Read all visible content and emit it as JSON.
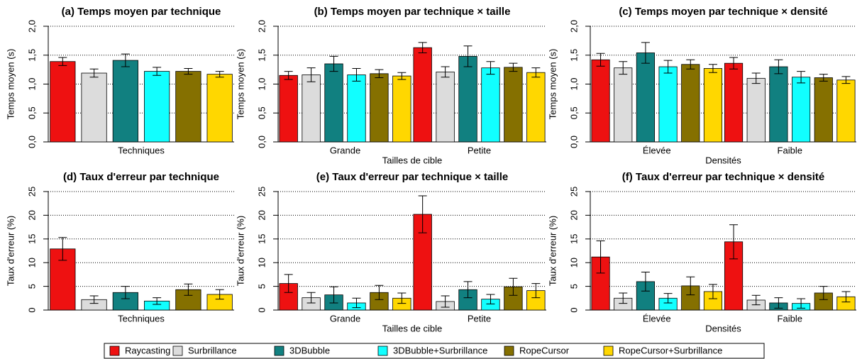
{
  "legend": [
    {
      "name": "Raycasting",
      "color": "#ee1111"
    },
    {
      "name": "Surbrillance",
      "color": "#dcdcdc"
    },
    {
      "name": "3DBubble",
      "color": "#118080"
    },
    {
      "name": "3DBubble+Surbrillance",
      "color": "#11ffff"
    },
    {
      "name": "RopeCursor",
      "color": "#857000"
    },
    {
      "name": "RopeCursor+Surbrillance",
      "color": "#ffd700"
    }
  ],
  "chart_data": [
    {
      "type": "bar",
      "title": "(a) Temps moyen par technique",
      "ylabel": "Temps moyen (s)",
      "xlabel": "Techniques",
      "categories": [
        null
      ],
      "ylim": [
        0,
        2
      ],
      "yticks": [
        {
          "value": 0,
          "label": "0,0"
        },
        {
          "value": 0.5,
          "label": "0,5"
        },
        {
          "value": 1,
          "label": "1,0"
        },
        {
          "value": 1.5,
          "label": "1,5"
        },
        {
          "value": 2,
          "label": "2,0"
        }
      ],
      "grid": true,
      "series": [
        {
          "values": [
            1.39
          ],
          "errors": [
            0.07
          ]
        },
        {
          "values": [
            1.19
          ],
          "errors": [
            0.07
          ]
        },
        {
          "values": [
            1.41
          ],
          "errors": [
            0.11
          ]
        },
        {
          "values": [
            1.22
          ],
          "errors": [
            0.07
          ]
        },
        {
          "values": [
            1.22
          ],
          "errors": [
            0.05
          ]
        },
        {
          "values": [
            1.17
          ],
          "errors": [
            0.05
          ]
        }
      ]
    },
    {
      "type": "bar",
      "title": "(b) Temps moyen par technique × taille",
      "ylabel": "Temps moyen (s)",
      "xlabel": "Tailles de cible",
      "categories": [
        "Grande",
        "Petite"
      ],
      "ylim": [
        0,
        2
      ],
      "yticks": [
        {
          "value": 0,
          "label": "0,0"
        },
        {
          "value": 0.5,
          "label": "0,5"
        },
        {
          "value": 1,
          "label": "1,0"
        },
        {
          "value": 1.5,
          "label": "1,5"
        },
        {
          "value": 2,
          "label": "2,0"
        }
      ],
      "grid": true,
      "series": [
        {
          "values": [
            1.15,
            1.63
          ],
          "errors": [
            0.07,
            0.09
          ]
        },
        {
          "values": [
            1.16,
            1.21
          ],
          "errors": [
            0.12,
            0.09
          ]
        },
        {
          "values": [
            1.35,
            1.48
          ],
          "errors": [
            0.13,
            0.18
          ]
        },
        {
          "values": [
            1.16,
            1.28
          ],
          "errors": [
            0.11,
            0.11
          ]
        },
        {
          "values": [
            1.18,
            1.29
          ],
          "errors": [
            0.07,
            0.07
          ]
        },
        {
          "values": [
            1.14,
            1.2
          ],
          "errors": [
            0.06,
            0.08
          ]
        }
      ]
    },
    {
      "type": "bar",
      "title": "(c) Temps moyen par technique × densité",
      "ylabel": "Temps moyen (s)",
      "xlabel": "Densités",
      "categories": [
        "Élevée",
        "Faible"
      ],
      "ylim": [
        0,
        2
      ],
      "yticks": [
        {
          "value": 0,
          "label": "0,0"
        },
        {
          "value": 0.5,
          "label": "0,5"
        },
        {
          "value": 1,
          "label": "1,0"
        },
        {
          "value": 1.5,
          "label": "1,5"
        },
        {
          "value": 2,
          "label": "2,0"
        }
      ],
      "grid": true,
      "series": [
        {
          "values": [
            1.42,
            1.36
          ],
          "errors": [
            0.11,
            0.1
          ]
        },
        {
          "values": [
            1.28,
            1.1
          ],
          "errors": [
            0.11,
            0.09
          ]
        },
        {
          "values": [
            1.54,
            1.3
          ],
          "errors": [
            0.18,
            0.12
          ]
        },
        {
          "values": [
            1.3,
            1.12
          ],
          "errors": [
            0.11,
            0.1
          ]
        },
        {
          "values": [
            1.34,
            1.11
          ],
          "errors": [
            0.08,
            0.06
          ]
        },
        {
          "values": [
            1.27,
            1.07
          ],
          "errors": [
            0.07,
            0.06
          ]
        }
      ]
    },
    {
      "type": "bar",
      "title": "(d) Taux d'erreur par technique",
      "ylabel": "Taux d'erreur (%)",
      "xlabel": "Techniques",
      "categories": [
        null
      ],
      "ylim": [
        0,
        25
      ],
      "yticks": [
        0,
        5,
        10,
        15,
        20,
        25
      ],
      "grid": true,
      "series": [
        {
          "values": [
            12.9
          ],
          "errors": [
            2.4
          ]
        },
        {
          "values": [
            2.2
          ],
          "errors": [
            0.8
          ]
        },
        {
          "values": [
            3.7
          ],
          "errors": [
            1.3
          ]
        },
        {
          "values": [
            1.9
          ],
          "errors": [
            0.7
          ]
        },
        {
          "values": [
            4.3
          ],
          "errors": [
            1.2
          ]
        },
        {
          "values": [
            3.3
          ],
          "errors": [
            1.0
          ]
        }
      ]
    },
    {
      "type": "bar",
      "title": "(e) Taux d'erreur par technique × taille",
      "ylabel": "Taux d'erreur (%)",
      "xlabel": "Tailles de cible",
      "categories": [
        "Grande",
        "Petite"
      ],
      "ylim": [
        0,
        25
      ],
      "yticks": [
        0,
        5,
        10,
        15,
        20,
        25
      ],
      "grid": true,
      "series": [
        {
          "values": [
            5.6,
            20.2
          ],
          "errors": [
            1.9,
            3.9
          ]
        },
        {
          "values": [
            2.6,
            1.8
          ],
          "errors": [
            1.1,
            1.2
          ]
        },
        {
          "values": [
            3.2,
            4.3
          ],
          "errors": [
            1.7,
            1.7
          ]
        },
        {
          "values": [
            1.5,
            2.3
          ],
          "errors": [
            1.0,
            1.0
          ]
        },
        {
          "values": [
            3.7,
            4.9
          ],
          "errors": [
            1.5,
            1.8
          ]
        },
        {
          "values": [
            2.5,
            4.1
          ],
          "errors": [
            1.1,
            1.5
          ]
        }
      ]
    },
    {
      "type": "bar",
      "title": "(f) Taux d'erreur par technique × densité",
      "ylabel": "Taux d'erreur (%)",
      "xlabel": "Densités",
      "categories": [
        "Élevée",
        "Faible"
      ],
      "ylim": [
        0,
        25
      ],
      "yticks": [
        0,
        5,
        10,
        15,
        20,
        25
      ],
      "grid": true,
      "series": [
        {
          "values": [
            11.2,
            14.4
          ],
          "errors": [
            3.4,
            3.6
          ]
        },
        {
          "values": [
            2.5,
            2.1
          ],
          "errors": [
            1.1,
            1.0
          ]
        },
        {
          "values": [
            6.0,
            1.5
          ],
          "errors": [
            2.0,
            1.1
          ]
        },
        {
          "values": [
            2.5,
            1.4
          ],
          "errors": [
            1.0,
            1.0
          ]
        },
        {
          "values": [
            5.1,
            3.6
          ],
          "errors": [
            1.9,
            1.4
          ]
        },
        {
          "values": [
            3.9,
            2.8
          ],
          "errors": [
            1.5,
            1.1
          ]
        }
      ]
    }
  ]
}
